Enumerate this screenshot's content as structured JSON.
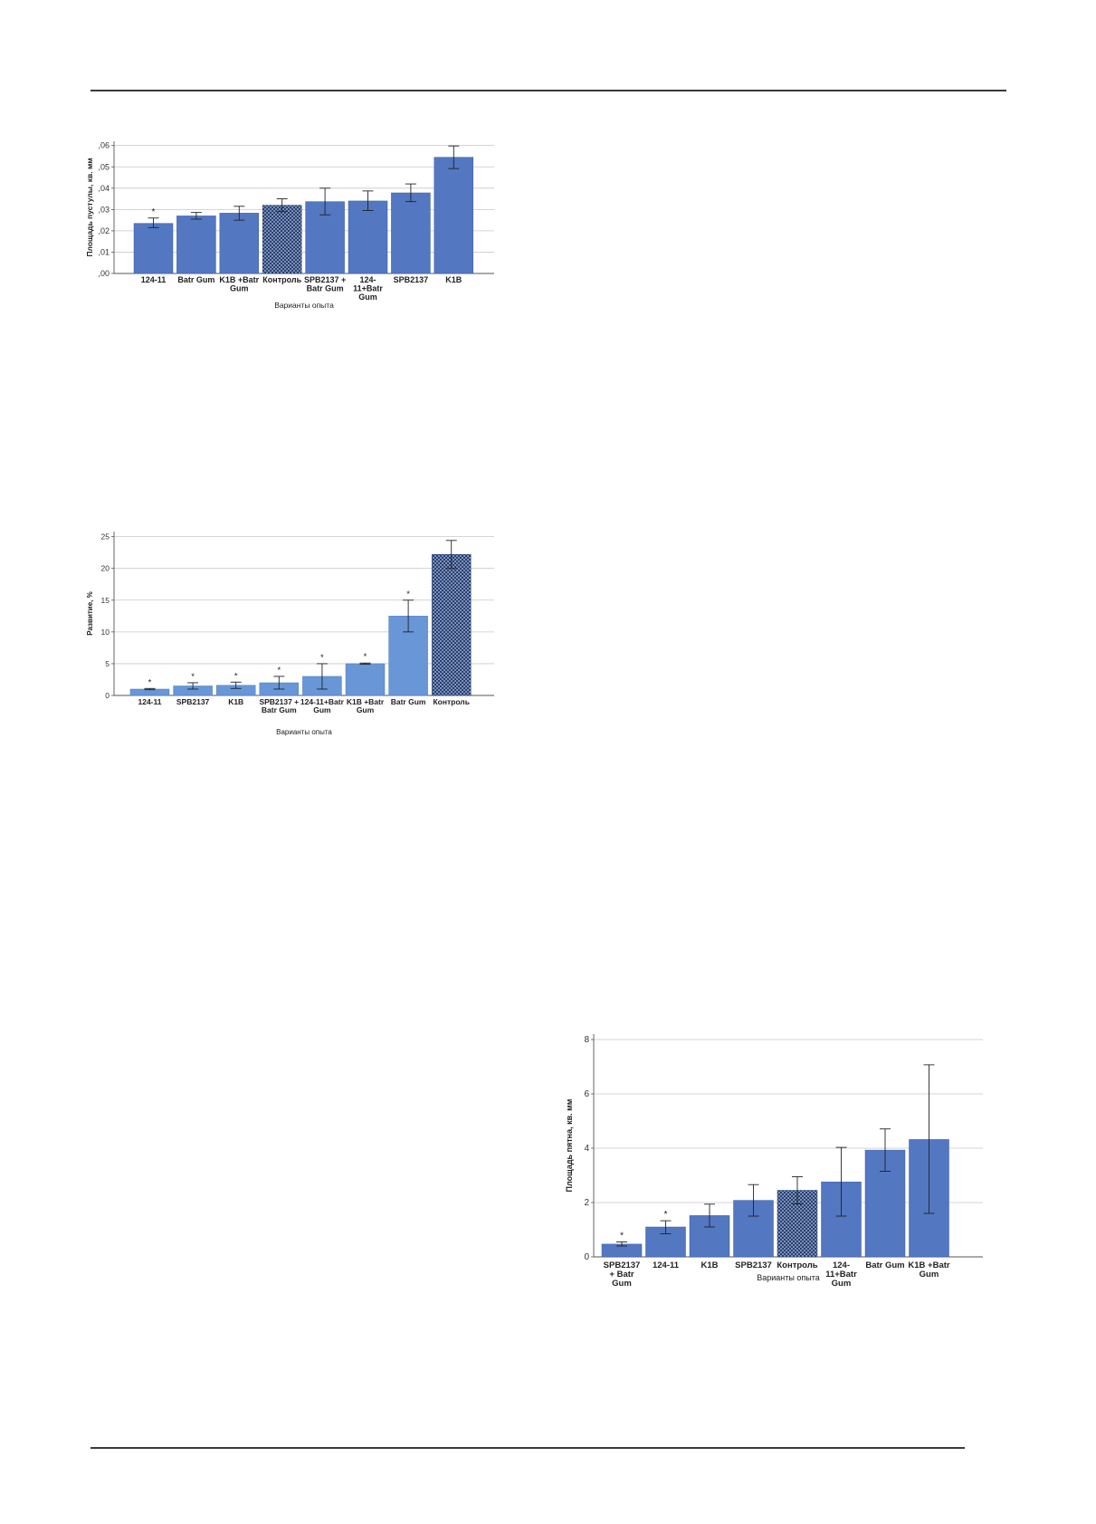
{
  "page": {
    "background": "#ffffff",
    "rule_color": "#3a3a3a"
  },
  "chart_data": [
    {
      "type": "bar",
      "xlabel": "Варианты опыта",
      "ylabel": "Площадь пустулы, кв. мм",
      "ylim": [
        0,
        0.062
      ],
      "yticks": [
        0,
        0.01,
        0.02,
        0.03,
        0.04,
        0.05,
        0.06
      ],
      "ytick_labels": [
        ",00",
        ",01",
        ",02",
        ",03",
        ",04",
        ",05",
        ",06"
      ],
      "grid": true,
      "categories": [
        [
          "124-11"
        ],
        [
          "Batr Gum"
        ],
        [
          "K1B +Batr",
          "Gum"
        ],
        [
          "Контроль"
        ],
        [
          "SPB2137 +",
          "Batr Gum"
        ],
        [
          "124-",
          "11+Batr",
          "Gum"
        ],
        [
          "SPB2137"
        ],
        [
          "K1B"
        ]
      ],
      "values": [
        0.0235,
        0.027,
        0.0283,
        0.032,
        0.0337,
        0.034,
        0.0378,
        0.0545
      ],
      "err_low": [
        0.0215,
        0.0255,
        0.025,
        0.029,
        0.0275,
        0.0295,
        0.0337,
        0.0492
      ],
      "err_high": [
        0.026,
        0.0286,
        0.0315,
        0.035,
        0.04,
        0.0387,
        0.042,
        0.0598
      ],
      "markers": [
        "*",
        "",
        "",
        "",
        "",
        "",
        "",
        ""
      ],
      "patterned": [
        false,
        false,
        false,
        true,
        false,
        false,
        false,
        false
      ],
      "colors": {
        "bar": "#5377c0",
        "bar_edge": "#3d5fa8",
        "pattern": "#27406f",
        "grid": "#c8c8c8",
        "axis": "#555555"
      }
    },
    {
      "type": "bar",
      "xlabel": "Варианты опыта",
      "ylabel": "Развитие, %",
      "ylim": [
        0,
        25.8
      ],
      "yticks": [
        0,
        5,
        10,
        15,
        20,
        25
      ],
      "ytick_labels": [
        "0",
        "5",
        "10",
        "15",
        "20",
        "25"
      ],
      "grid": true,
      "categories": [
        [
          "124-11"
        ],
        [
          "SPB2137"
        ],
        [
          "K1B"
        ],
        [
          "SPB2137 +",
          "Batr Gum"
        ],
        [
          "124-11+Batr",
          "Gum"
        ],
        [
          "K1B +Batr",
          "Gum"
        ],
        [
          "Batr Gum"
        ],
        [
          "Контроль"
        ]
      ],
      "values": [
        1.0,
        1.5,
        1.6,
        2.0,
        3.0,
        5.0,
        12.5,
        22.2
      ],
      "err_low": [
        0.9,
        1.0,
        1.1,
        1.0,
        1.0,
        4.9,
        10.0,
        20.0
      ],
      "err_high": [
        1.1,
        2.0,
        2.1,
        3.0,
        5.0,
        5.1,
        15.0,
        24.4
      ],
      "markers": [
        "*",
        "*",
        "*",
        "*",
        "*",
        "*",
        "*",
        ""
      ],
      "patterned": [
        false,
        false,
        false,
        false,
        false,
        false,
        false,
        true
      ],
      "colors": {
        "bar": "#6996d6",
        "bar_edge": "#5080c0",
        "pattern": "#27406f",
        "grid": "#c8c8c8",
        "axis": "#555555"
      }
    },
    {
      "type": "bar",
      "xlabel": "Варианты опыта",
      "ylabel": "Площадь пятна, кв. мм",
      "ylim": [
        0,
        8.2
      ],
      "yticks": [
        0,
        2,
        4,
        6,
        8
      ],
      "ytick_labels": [
        "0",
        "2",
        "4",
        "6",
        "8"
      ],
      "grid": true,
      "categories": [
        [
          "SPB2137",
          "+ Batr",
          "Gum"
        ],
        [
          "124-11"
        ],
        [
          "K1B"
        ],
        [
          "SPB2137"
        ],
        [
          "Контроль"
        ],
        [
          "124-",
          "11+Batr",
          "Gum"
        ],
        [
          "Batr Gum"
        ],
        [
          "K1B +Batr",
          "Gum"
        ]
      ],
      "values": [
        0.47,
        1.1,
        1.52,
        2.08,
        2.45,
        2.76,
        3.93,
        4.32
      ],
      "err_low": [
        0.4,
        0.85,
        1.1,
        1.5,
        1.95,
        1.5,
        3.15,
        1.6
      ],
      "err_high": [
        0.55,
        1.33,
        1.94,
        2.66,
        2.95,
        4.03,
        4.71,
        7.07
      ],
      "markers": [
        "*",
        "*",
        "",
        "",
        "",
        "",
        "",
        ""
      ],
      "patterned": [
        false,
        false,
        false,
        false,
        true,
        false,
        false,
        false
      ],
      "colors": {
        "bar": "#5377c0",
        "bar_edge": "#3d5fa8",
        "pattern": "#27406f",
        "grid": "#c8c8c8",
        "axis": "#555555"
      }
    }
  ]
}
